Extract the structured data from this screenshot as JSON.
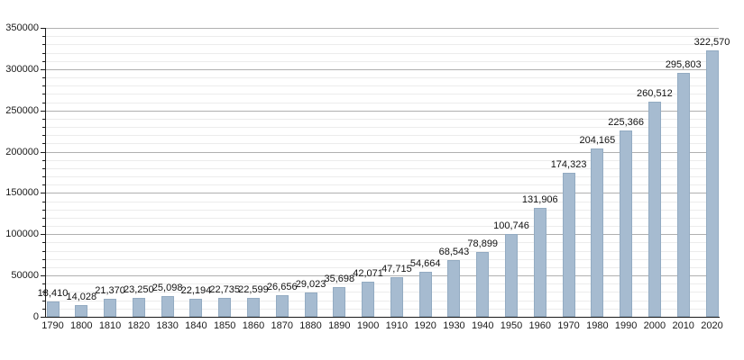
{
  "chart_data": {
    "type": "bar",
    "title": "",
    "xlabel": "",
    "ylabel": "",
    "categories": [
      "1790",
      "1800",
      "1810",
      "1820",
      "1830",
      "1840",
      "1850",
      "1860",
      "1870",
      "1880",
      "1890",
      "1900",
      "1910",
      "1920",
      "1930",
      "1940",
      "1950",
      "1960",
      "1970",
      "1980",
      "1990",
      "2000",
      "2010",
      "2020"
    ],
    "values": [
      18410,
      14028,
      21370,
      23250,
      25098,
      22194,
      22735,
      22599,
      26656,
      29023,
      35698,
      42071,
      47715,
      54664,
      68543,
      78899,
      100746,
      131906,
      174323,
      204165,
      225366,
      260512,
      295803,
      322570
    ],
    "value_labels": [
      "18,410",
      "14,028",
      "21,370",
      "23,250",
      "25,098",
      "22,194",
      "22,735",
      "22,599",
      "26,656",
      "29,023",
      "35,698",
      "42,071",
      "47,715",
      "54,664",
      "68,543",
      "78,899",
      "100,746",
      "131,906",
      "174,323",
      "204,165",
      "225,366",
      "260,512",
      "295,803",
      "322,570"
    ],
    "ylim": [
      0,
      350000
    ],
    "y_major_step": 50000,
    "y_minor_step": 10000,
    "y_tick_labels": [
      "0",
      "50000",
      "100000",
      "150000",
      "200000",
      "250000",
      "300000",
      "350000"
    ],
    "grid": "major and minor horizontal",
    "legend_position": "none",
    "colors": {
      "bar_fill": "#a6bbd0",
      "bar_border": "#93abc2",
      "major_grid": "#b0b0b0",
      "minor_grid": "#ececec",
      "axis": "#1a1a1a",
      "text": "#111111",
      "background": "#ffffff"
    }
  }
}
